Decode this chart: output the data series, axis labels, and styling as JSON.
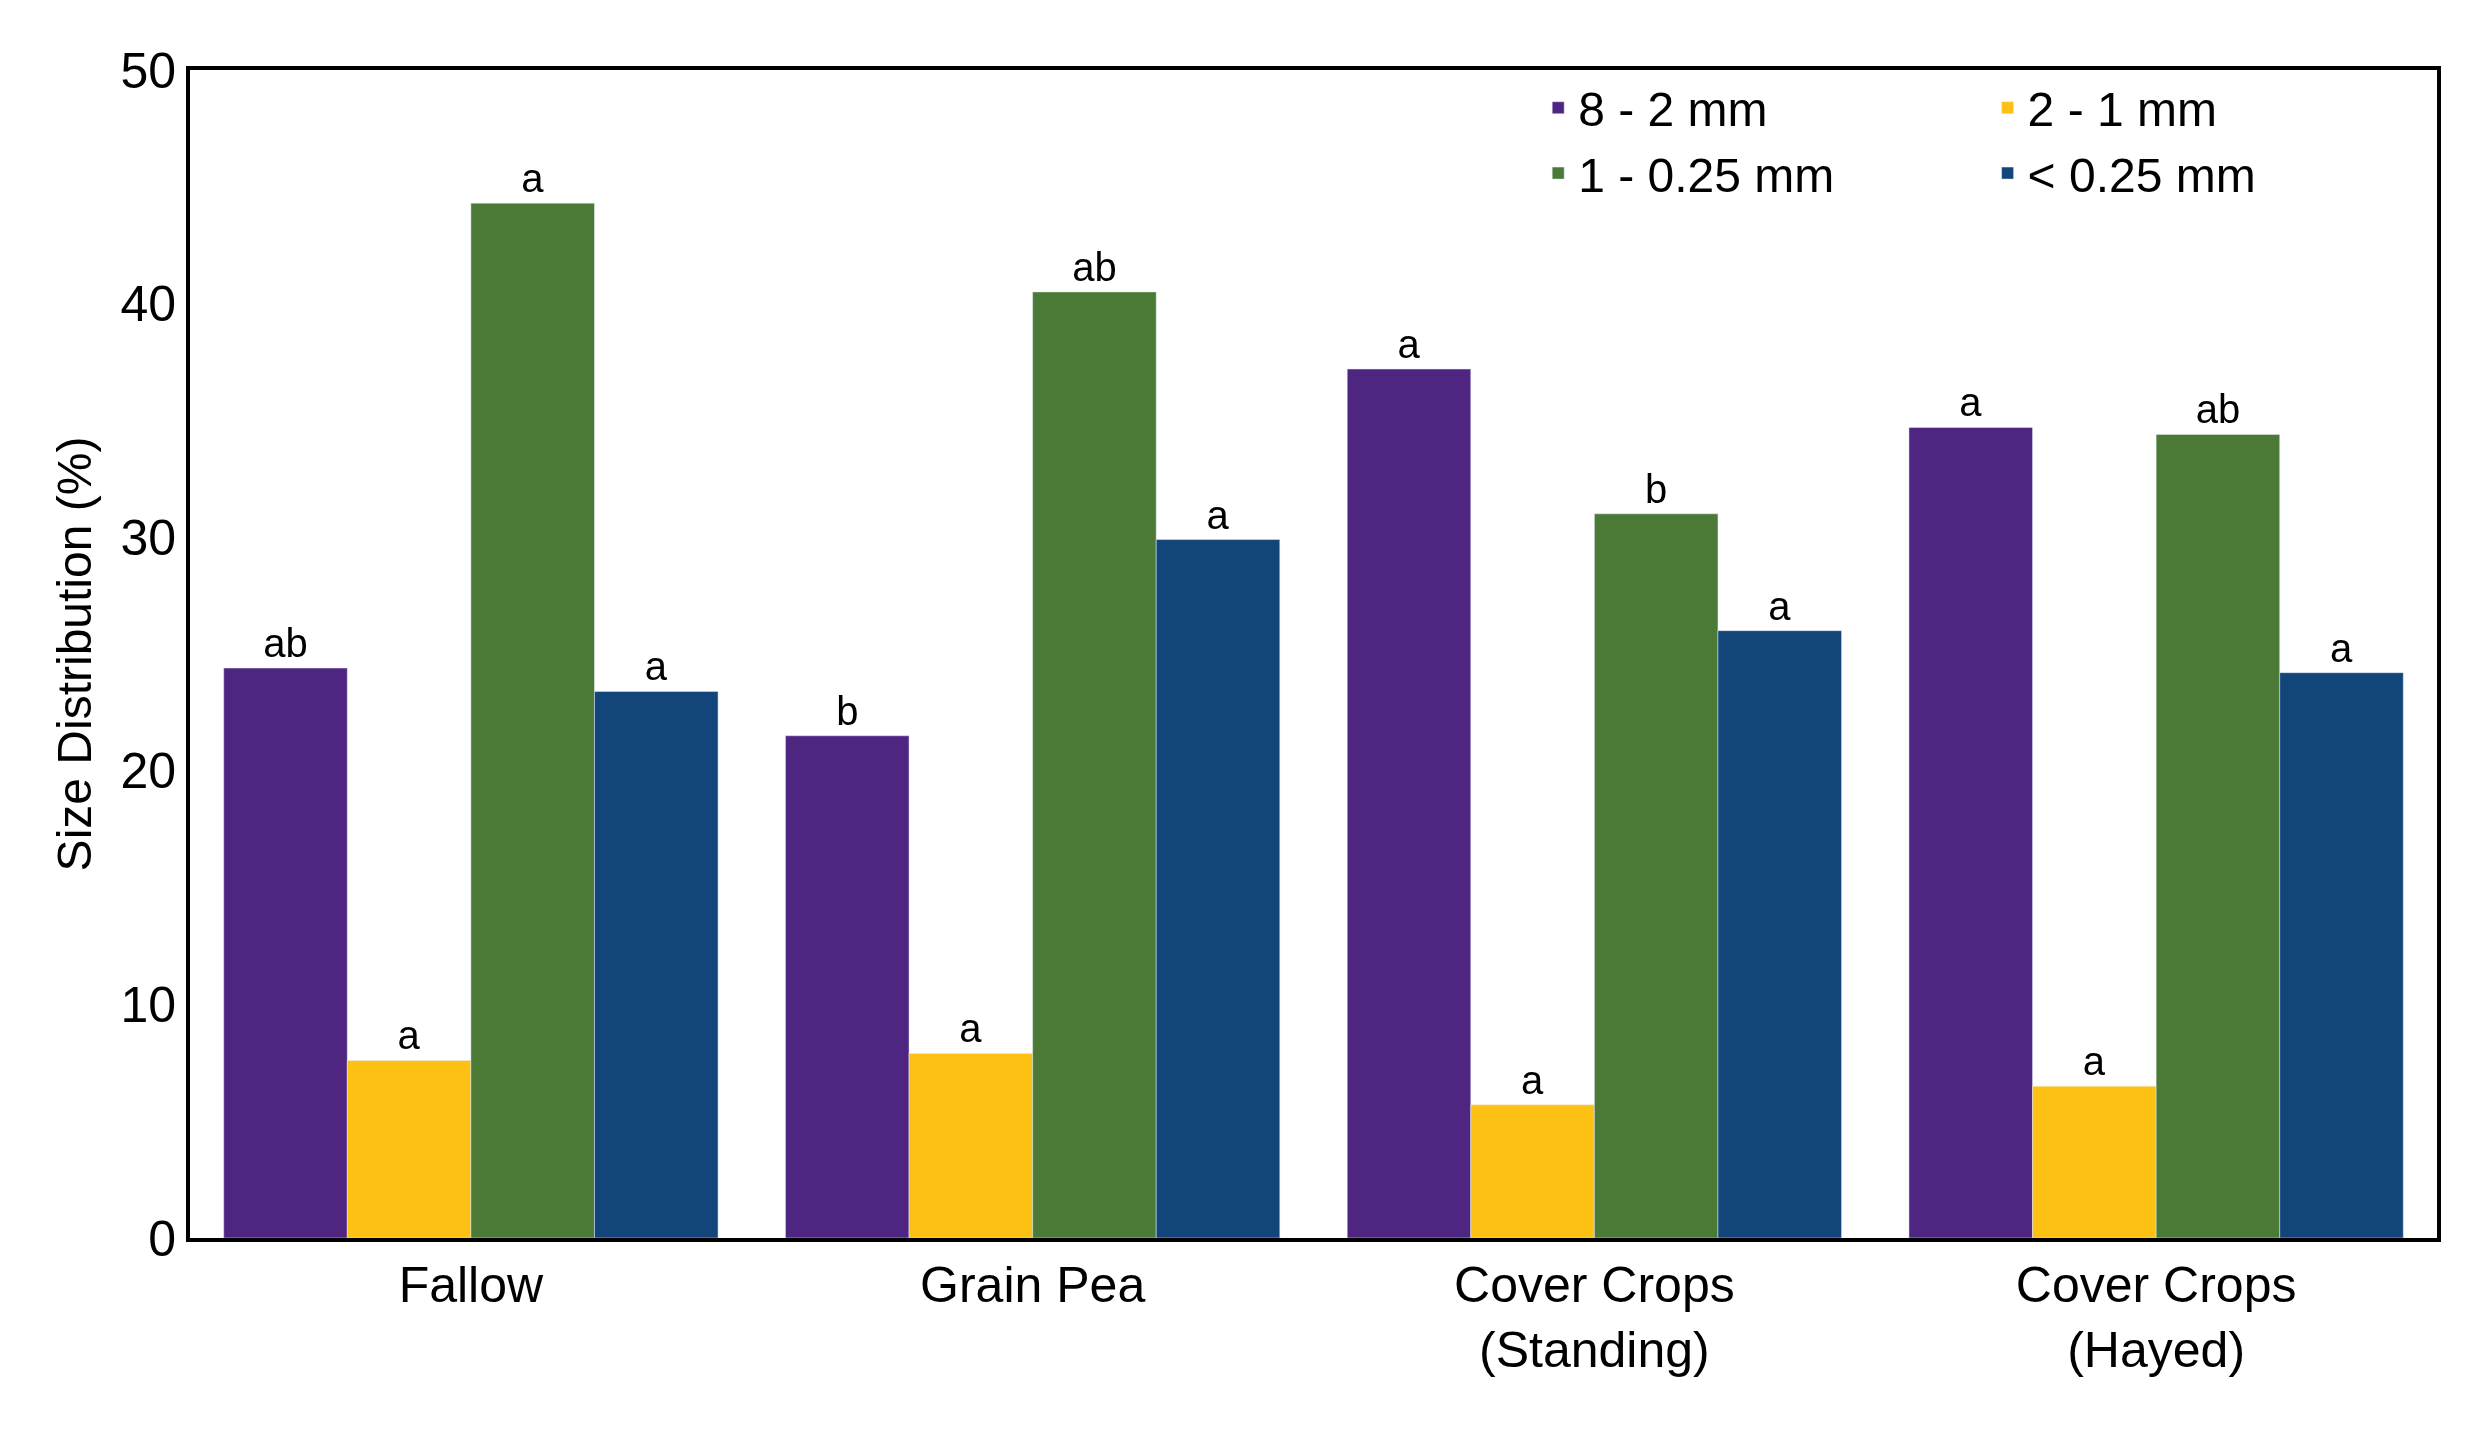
{
  "chart_data": {
    "type": "bar",
    "ylabel": "Size Distribution (%)",
    "categories": [
      "Fallow",
      "Grain Pea",
      "Cover Crops (Standing)",
      "Cover Crops (Hayed)"
    ],
    "series": [
      {
        "name": "8 - 2 mm",
        "color": "#4e2682",
        "values": [
          24.4,
          21.5,
          37.2,
          34.7
        ],
        "value_labels": [
          "ab",
          "b",
          "a",
          "a"
        ]
      },
      {
        "name": "2 - 1 mm",
        "color": "#fdc114",
        "values": [
          7.6,
          7.9,
          5.7,
          6.5
        ],
        "value_labels": [
          "a",
          "a",
          "a",
          "a"
        ]
      },
      {
        "name": "1 - 0.25 mm",
        "color": "#4a7a35",
        "values": [
          44.3,
          40.5,
          31.0,
          34.4
        ],
        "value_labels": [
          "a",
          "ab",
          "b",
          "ab"
        ]
      },
      {
        "name": "< 0.25 mm",
        "color": "#12467b",
        "values": [
          23.4,
          29.9,
          26.0,
          24.2
        ],
        "value_labels": [
          "a",
          "a",
          "a",
          "a"
        ]
      }
    ],
    "ylim": [
      0,
      50
    ],
    "yticks": [
      0,
      10,
      20,
      30,
      40,
      50
    ],
    "legend": "top right"
  }
}
